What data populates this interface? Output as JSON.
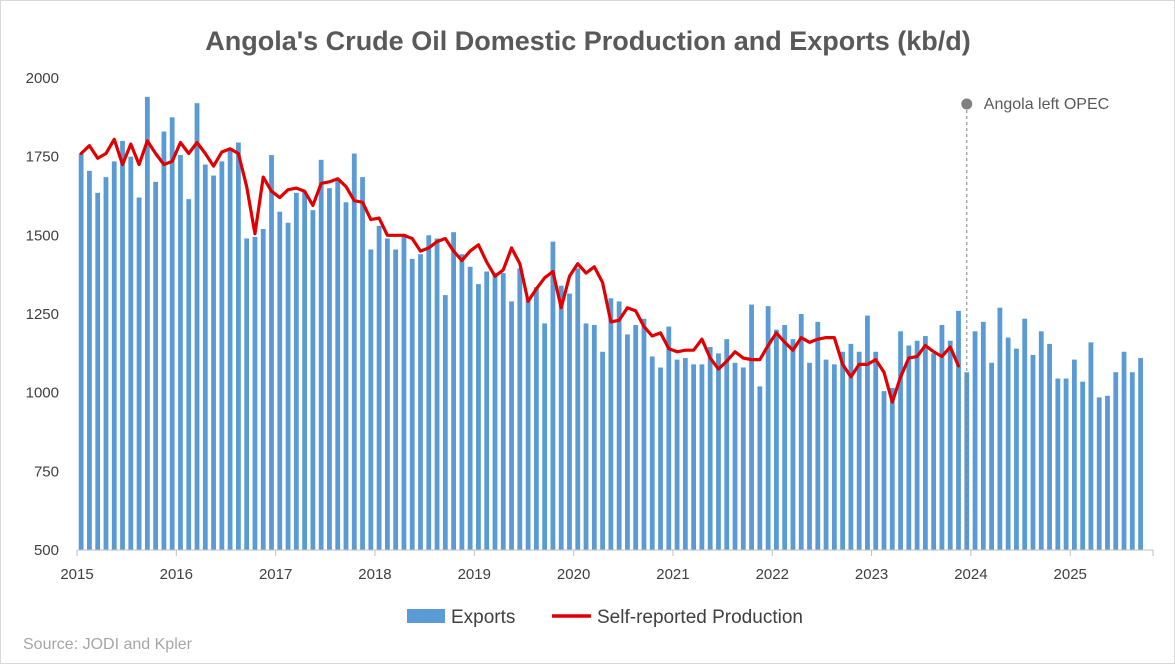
{
  "chart_data": {
    "type": "bar",
    "title": "Angola's Crude Oil Domestic Production and Exports (kb/d)",
    "ylim": [
      500,
      2000
    ],
    "yticks": [
      "500",
      "750",
      "1000",
      "1250",
      "1500",
      "1750",
      "2000"
    ],
    "xlabels": [
      "2015",
      "2016",
      "2017",
      "2018",
      "2019",
      "2020",
      "2021",
      "2022",
      "2023",
      "2024",
      "2025"
    ],
    "months_start": "2015-01",
    "series": [
      {
        "name": "Exports",
        "color": "#5b9bd5",
        "values": [
          1760,
          1705,
          1635,
          1685,
          1735,
          1800,
          1750,
          1620,
          1940,
          1670,
          1830,
          1875,
          1755,
          1615,
          1920,
          1725,
          1690,
          1735,
          1770,
          1795,
          1490,
          1495,
          1520,
          1755,
          1575,
          1540,
          1635,
          1640,
          1580,
          1740,
          1650,
          1680,
          1605,
          1760,
          1685,
          1455,
          1530,
          1490,
          1455,
          1505,
          1425,
          1440,
          1500,
          1490,
          1310,
          1510,
          1440,
          1400,
          1345,
          1385,
          1380,
          1380,
          1290,
          1395,
          1305,
          1335,
          1220,
          1480,
          1340,
          1315,
          1395,
          1220,
          1215,
          1130,
          1300,
          1290,
          1185,
          1215,
          1235,
          1115,
          1080,
          1210,
          1105,
          1110,
          1090,
          1090,
          1145,
          1125,
          1170,
          1095,
          1080,
          1280,
          1020,
          1275,
          1200,
          1215,
          1170,
          1250,
          1095,
          1225,
          1105,
          1090,
          1130,
          1155,
          1130,
          1245,
          1130,
          1005,
          1015,
          1195,
          1150,
          1165,
          1180,
          1125,
          1215,
          1165,
          1260,
          1065,
          1195,
          1225,
          1095,
          1270,
          1175,
          1140,
          1235,
          1120,
          1195,
          1155,
          1045,
          1045,
          1105,
          1035,
          1160,
          985,
          990,
          1065,
          1130,
          1065,
          1110
        ],
        "legend": "Exports"
      },
      {
        "name": "Self-reported Production",
        "color": "#e00000",
        "values": [
          1760,
          1785,
          1745,
          1760,
          1805,
          1725,
          1790,
          1725,
          1800,
          1760,
          1725,
          1735,
          1795,
          1760,
          1795,
          1760,
          1720,
          1765,
          1775,
          1760,
          1655,
          1505,
          1685,
          1640,
          1620,
          1645,
          1650,
          1640,
          1595,
          1665,
          1670,
          1680,
          1655,
          1610,
          1605,
          1550,
          1555,
          1500,
          1500,
          1500,
          1490,
          1450,
          1460,
          1480,
          1490,
          1450,
          1420,
          1450,
          1470,
          1415,
          1370,
          1390,
          1460,
          1410,
          1290,
          1330,
          1365,
          1385,
          1270,
          1370,
          1410,
          1380,
          1400,
          1350,
          1225,
          1230,
          1270,
          1260,
          1210,
          1180,
          1190,
          1140,
          1130,
          1135,
          1135,
          1170,
          1110,
          1075,
          1100,
          1130,
          1110,
          1105,
          1105,
          1150,
          1190,
          1160,
          1135,
          1175,
          1160,
          1170,
          1175,
          1175,
          1090,
          1050,
          1090,
          1090,
          1105,
          1065,
          970,
          1050,
          1110,
          1115,
          1150,
          1130,
          1115,
          1145,
          1085
        ],
        "legend": "Self-reported Production"
      }
    ],
    "annotation": "Angola left OPEC",
    "annotation_month_index": 107,
    "grid": false,
    "legend_position": "bottom"
  },
  "source_note": "Source: JODI and Kpler"
}
